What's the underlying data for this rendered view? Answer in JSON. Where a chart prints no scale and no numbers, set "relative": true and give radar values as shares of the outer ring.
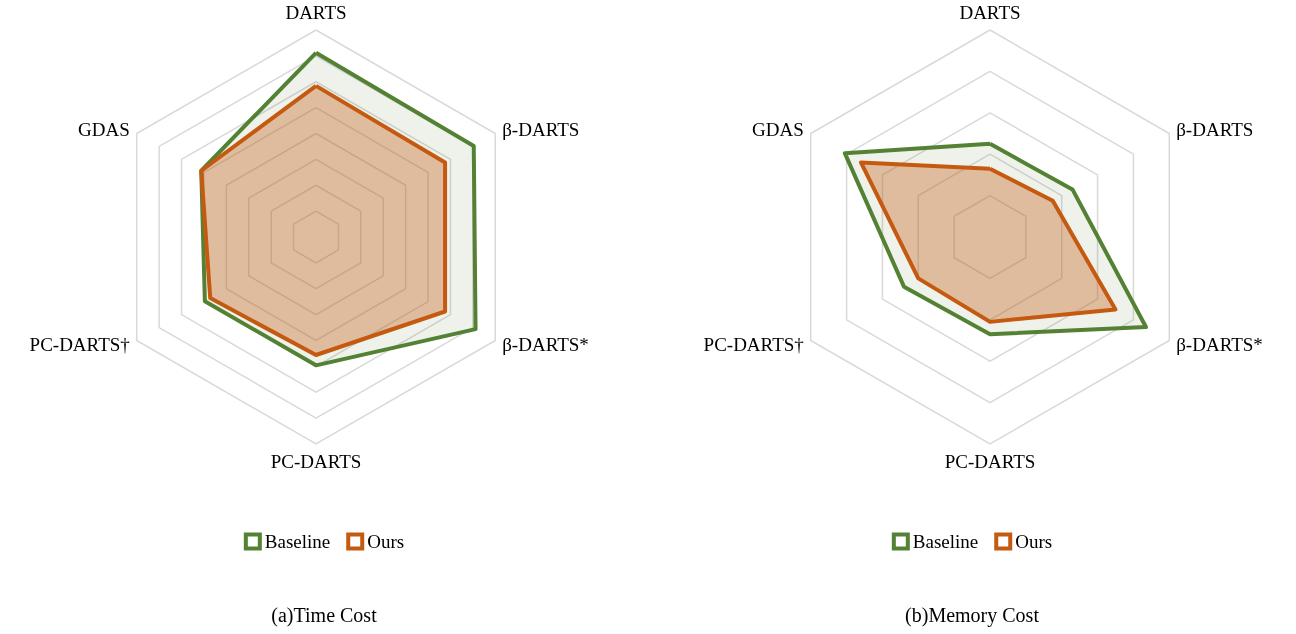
{
  "chart_data": [
    {
      "type": "radar",
      "title": "(a)Time Cost",
      "relative": true,
      "legend": "bottom",
      "categories": [
        "DARTS",
        "β-DARTS",
        "β-DARTS*",
        "PC-DARTS",
        "PC-DARTS†",
        "GDAS"
      ],
      "series": [
        {
          "name": "Baseline",
          "color": "#548235",
          "values": [
            0.89,
            0.88,
            0.89,
            0.62,
            0.62,
            0.64
          ]
        },
        {
          "name": "Ours",
          "color": "#c55a11",
          "values": [
            0.73,
            0.72,
            0.72,
            0.57,
            0.59,
            0.64
          ]
        }
      ]
    },
    {
      "type": "radar",
      "title": "(b)Memory Cost",
      "relative": true,
      "legend": "bottom",
      "categories": [
        "DARTS",
        "β-DARTS",
        "β-DARTS*",
        "PC-DARTS",
        "PC-DARTS†",
        "GDAS"
      ],
      "series": [
        {
          "name": "Baseline",
          "color": "#548235",
          "values": [
            0.45,
            0.46,
            0.87,
            0.47,
            0.48,
            0.81
          ]
        },
        {
          "name": "Ours",
          "color": "#c55a11",
          "values": [
            0.33,
            0.35,
            0.7,
            0.41,
            0.4,
            0.72
          ]
        }
      ]
    }
  ]
}
